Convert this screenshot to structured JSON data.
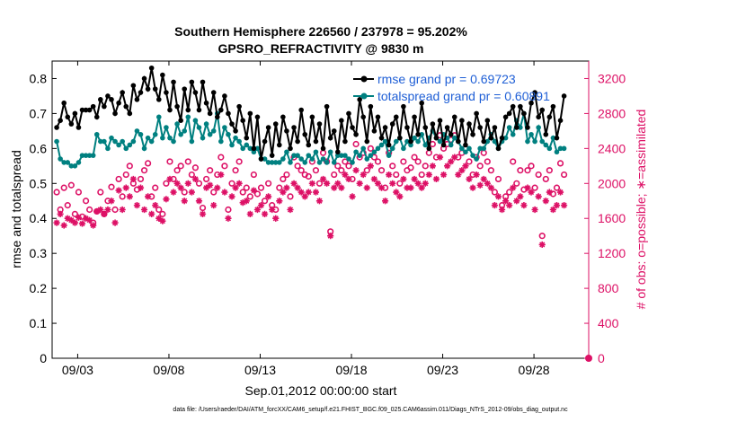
{
  "colors": {
    "rmse": "#000000",
    "spread": "#008080",
    "obs": "#dd1166",
    "legend_text": "#1f5fd6",
    "grid": "#c0c0c0"
  },
  "chart_data": {
    "type": "line",
    "title": "Southern Hemisphere 226560 / 237978 = 95.202%",
    "subtitle": "GPSRO_REFRACTIVITY @ 9830 m",
    "xlabel": "Sep.01,2012 00:00:00 start",
    "ylabel_left": "rmse and totalspread",
    "ylabel_right": "# of obs: o=possible; ∗=assimilated",
    "footer": "data file: /Users/raeder/DAI/ATM_forcXX/CAM6_setup/f.e21.FHIST_BGC.f09_025.CAM6assim.011/Diags_NTrS_2012-09/obs_diag_output.nc",
    "x_unit": "days since Sep.01,2012 00:00:00",
    "xlim": [
      0.6,
      30.0
    ],
    "ylim_left": [
      0,
      0.85
    ],
    "ylim_right": [
      0,
      3400
    ],
    "x_ticks": [
      2,
      7,
      12,
      17,
      22,
      27
    ],
    "x_tick_labels": [
      "09/03",
      "09/08",
      "09/13",
      "09/18",
      "09/23",
      "09/28"
    ],
    "y_ticks_left": [
      0,
      0.1,
      0.2,
      0.3,
      0.4,
      0.5,
      0.6,
      0.7,
      0.8
    ],
    "y_ticks_right": [
      0,
      400,
      800,
      1200,
      1600,
      2000,
      2400,
      2800,
      3200
    ],
    "legend_position": "top-right",
    "series": [
      {
        "name": "rmse grand pr = 0.69723",
        "marker": "filled-circle-line",
        "values_note": "4 analyses per day, every 0.25 day",
        "values": [
          0.66,
          0.68,
          0.73,
          0.69,
          0.67,
          0.7,
          0.66,
          0.71,
          0.71,
          0.71,
          0.72,
          0.69,
          0.74,
          0.72,
          0.75,
          0.74,
          0.7,
          0.73,
          0.76,
          0.72,
          0.7,
          0.78,
          0.74,
          0.76,
          0.8,
          0.77,
          0.83,
          0.77,
          0.74,
          0.81,
          0.76,
          0.71,
          0.79,
          0.72,
          0.68,
          0.77,
          0.71,
          0.79,
          0.76,
          0.71,
          0.79,
          0.73,
          0.7,
          0.76,
          0.69,
          0.71,
          0.75,
          0.7,
          0.67,
          0.65,
          0.72,
          0.68,
          0.63,
          0.7,
          0.6,
          0.69,
          0.57,
          0.62,
          0.66,
          0.58,
          0.67,
          0.61,
          0.69,
          0.65,
          0.6,
          0.66,
          0.62,
          0.71,
          0.64,
          0.61,
          0.69,
          0.62,
          0.67,
          0.6,
          0.72,
          0.63,
          0.65,
          0.59,
          0.68,
          0.62,
          0.7,
          0.66,
          0.64,
          0.74,
          0.69,
          0.62,
          0.72,
          0.65,
          0.69,
          0.63,
          0.66,
          0.61,
          0.67,
          0.69,
          0.63,
          0.72,
          0.66,
          0.62,
          0.69,
          0.64,
          0.73,
          0.66,
          0.6,
          0.67,
          0.63,
          0.68,
          0.61,
          0.66,
          0.64,
          0.69,
          0.62,
          0.68,
          0.61,
          0.67,
          0.64,
          0.7,
          0.66,
          0.62,
          0.68,
          0.63,
          0.66,
          0.6,
          0.63,
          0.69,
          0.7,
          0.72,
          0.66,
          0.72,
          0.7,
          0.66,
          0.73,
          0.76,
          0.69,
          0.71,
          0.64,
          0.69,
          0.72,
          0.63,
          0.68,
          0.75
        ]
      },
      {
        "name": "totalspread grand pr = 0.60891",
        "marker": "filled-circle-line",
        "values": [
          0.62,
          0.57,
          0.56,
          0.56,
          0.55,
          0.55,
          0.56,
          0.58,
          0.58,
          0.58,
          0.58,
          0.64,
          0.62,
          0.62,
          0.6,
          0.63,
          0.62,
          0.61,
          0.62,
          0.6,
          0.61,
          0.62,
          0.65,
          0.64,
          0.6,
          0.63,
          0.62,
          0.64,
          0.69,
          0.63,
          0.66,
          0.63,
          0.62,
          0.67,
          0.64,
          0.65,
          0.69,
          0.62,
          0.68,
          0.66,
          0.63,
          0.67,
          0.64,
          0.65,
          0.7,
          0.62,
          0.66,
          0.64,
          0.61,
          0.63,
          0.62,
          0.6,
          0.61,
          0.6,
          0.59,
          0.6,
          0.57,
          0.57,
          0.56,
          0.56,
          0.56,
          0.56,
          0.57,
          0.59,
          0.56,
          0.58,
          0.58,
          0.57,
          0.56,
          0.58,
          0.57,
          0.59,
          0.56,
          0.57,
          0.56,
          0.59,
          0.56,
          0.58,
          0.58,
          0.58,
          0.57,
          0.56,
          0.59,
          0.58,
          0.6,
          0.57,
          0.58,
          0.59,
          0.6,
          0.61,
          0.62,
          0.58,
          0.6,
          0.62,
          0.63,
          0.6,
          0.62,
          0.61,
          0.63,
          0.62,
          0.64,
          0.61,
          0.63,
          0.65,
          0.63,
          0.62,
          0.64,
          0.63,
          0.61,
          0.63,
          0.62,
          0.6,
          0.59,
          0.6,
          0.58,
          0.57,
          0.6,
          0.6,
          0.62,
          0.64,
          0.62,
          0.6,
          0.62,
          0.63,
          0.66,
          0.64,
          0.68,
          0.66,
          0.7,
          0.62,
          0.64,
          0.62,
          0.66,
          0.62,
          0.61,
          0.6,
          0.63,
          0.59,
          0.6,
          0.6
        ]
      },
      {
        "name": "# of obs possible",
        "marker": "open-circle",
        "axis": "right",
        "values": [
          1900,
          1700,
          1950,
          1750,
          1980,
          1650,
          1900,
          1620,
          1800,
          1700,
          1550,
          1680,
          1900,
          1650,
          1800,
          1960,
          1700,
          2050,
          1850,
          2100,
          2200,
          2000,
          1930,
          2050,
          2150,
          2230,
          1850,
          1950,
          1700,
          1650,
          2000,
          2250,
          2050,
          2150,
          2200,
          1900,
          2250,
          2100,
          2180,
          2000,
          1720,
          2050,
          2150,
          1900,
          2100,
          2300,
          2200,
          1700,
          2000,
          2150,
          2250,
          1900,
          1950,
          1850,
          2100,
          1880,
          1950,
          1800,
          2000,
          1750,
          1700,
          1950,
          2050,
          2100,
          1850,
          2300,
          2200,
          2150,
          2100,
          2080,
          2250,
          2150,
          2000,
          2350,
          2250,
          1450,
          2100,
          2200,
          2150,
          2250,
          2200,
          2050,
          2450,
          2300,
          2350,
          2150,
          2400,
          2300,
          2250,
          2150,
          1950,
          2350,
          2200,
          2100,
          2000,
          2250,
          2150,
          2180,
          2300,
          2250,
          2100,
          2200,
          2350,
          2450,
          2300,
          2550,
          2400,
          2450,
          2500,
          2550,
          2300,
          2350,
          2400,
          2250,
          2100,
          2300,
          2200,
          2350,
          2250,
          2150,
          1900,
          2050,
          1750,
          1850,
          1900,
          2250,
          2000,
          2150,
          1930,
          2150,
          2200,
          1950,
          2100,
          1400,
          2050,
          2150,
          1880,
          1950,
          2230,
          2100
        ]
      },
      {
        "name": "# of obs assimilated",
        "marker": "asterisk",
        "axis": "right",
        "values": [
          1550,
          1650,
          1520,
          1600,
          1580,
          1550,
          1610,
          1540,
          1600,
          1580,
          1520,
          1680,
          1700,
          1650,
          1700,
          1800,
          1550,
          1920,
          1700,
          1950,
          1850,
          2050,
          1750,
          1950,
          1700,
          1850,
          1650,
          1750,
          1600,
          1570,
          1820,
          2050,
          1900,
          2000,
          1950,
          1800,
          2000,
          1900,
          2050,
          1800,
          1650,
          1950,
          1980,
          1750,
          1950,
          2100,
          1900,
          1600,
          1850,
          1950,
          2000,
          1780,
          1800,
          1650,
          1920,
          1700,
          1750,
          1650,
          1850,
          1700,
          1600,
          1800,
          1900,
          1950,
          1700,
          2000,
          1950,
          1900,
          1850,
          1900,
          2000,
          1900,
          1800,
          2050,
          2000,
          1400,
          1950,
          2000,
          1950,
          2100,
          2050,
          1850,
          2150,
          2000,
          2100,
          1950,
          2200,
          2050,
          2000,
          1950,
          1800,
          2100,
          2000,
          1900,
          1850,
          2050,
          1950,
          1950,
          2050,
          2000,
          1950,
          2000,
          2100,
          2200,
          2050,
          2300,
          2100,
          2200,
          2250,
          2300,
          2100,
          2150,
          2200,
          2050,
          1950,
          2100,
          1980,
          2050,
          2000,
          1950,
          1750,
          1850,
          1700,
          1800,
          1750,
          1950,
          1800,
          1850,
          1750,
          1950,
          1900,
          1700,
          1850,
          1300,
          1800,
          1900,
          1700,
          1750,
          1900,
          1750
        ]
      }
    ]
  }
}
